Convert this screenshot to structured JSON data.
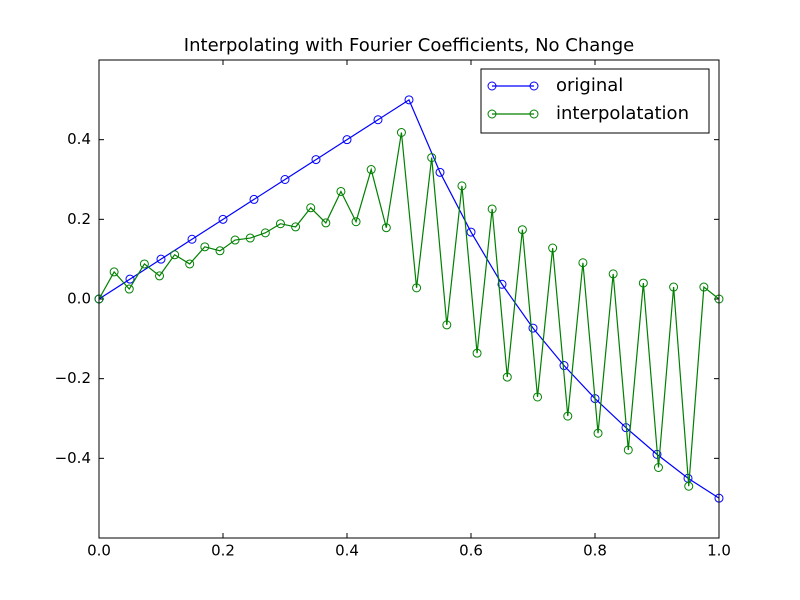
{
  "chart_data": {
    "type": "line",
    "title": "Interpolating with Fourier Coefficients, No Change",
    "series": [
      {
        "name": "original",
        "color": "#0000ff",
        "x": [
          0,
          0.05,
          0.1,
          0.15,
          0.2,
          0.25,
          0.3,
          0.35,
          0.4,
          0.45,
          0.5,
          0.55,
          0.6,
          0.65,
          0.7,
          0.75,
          0.8,
          0.85,
          0.9,
          0.95,
          1
        ],
        "values": [
          0,
          0.05,
          0.1,
          0.15,
          0.2,
          0.25,
          0.3,
          0.35,
          0.4,
          0.45,
          0.5,
          0.318,
          0.168,
          0.037,
          -0.073,
          -0.167,
          -0.25,
          -0.323,
          -0.39,
          -0.45,
          -0.5
        ]
      },
      {
        "name": "interpolatation",
        "color": "#008000",
        "x": [
          0,
          0.0244,
          0.0488,
          0.0732,
          0.0976,
          0.122,
          0.1463,
          0.1707,
          0.1951,
          0.2195,
          0.2439,
          0.2683,
          0.2927,
          0.3171,
          0.3415,
          0.3659,
          0.3902,
          0.4146,
          0.439,
          0.4634,
          0.4878,
          0.5122,
          0.5366,
          0.561,
          0.5854,
          0.6098,
          0.6341,
          0.6585,
          0.6829,
          0.7073,
          0.7317,
          0.7561,
          0.7805,
          0.8049,
          0.8293,
          0.8537,
          0.878,
          0.9024,
          0.9268,
          0.9512,
          0.9756,
          1
        ],
        "values": [
          0,
          0.068,
          0.025,
          0.088,
          0.058,
          0.111,
          0.088,
          0.131,
          0.121,
          0.148,
          0.153,
          0.166,
          0.189,
          0.181,
          0.229,
          0.191,
          0.27,
          0.194,
          0.325,
          0.179,
          0.418,
          0.028,
          0.355,
          -0.065,
          0.284,
          -0.136,
          0.226,
          -0.196,
          0.174,
          -0.246,
          0.128,
          -0.294,
          0.091,
          -0.337,
          0.063,
          -0.379,
          0.04,
          -0.423,
          0.03,
          -0.47,
          0.03,
          0
        ]
      }
    ],
    "xlim": [
      0,
      1
    ],
    "ylim": [
      -0.6,
      0.6
    ],
    "xticks": [
      {
        "value": 0,
        "label": "0.0"
      },
      0.2,
      0.4,
      0.6,
      0.8,
      {
        "value": 1,
        "label": "1.0"
      }
    ],
    "yticks": [
      {
        "value": -0.4,
        "label": "−0.4"
      },
      {
        "value": -0.2,
        "label": "−0.2"
      },
      {
        "value": 0,
        "label": "0.0"
      },
      0.2,
      0.4
    ],
    "grid": false,
    "legend": "upper right",
    "marker": "open-circle"
  }
}
